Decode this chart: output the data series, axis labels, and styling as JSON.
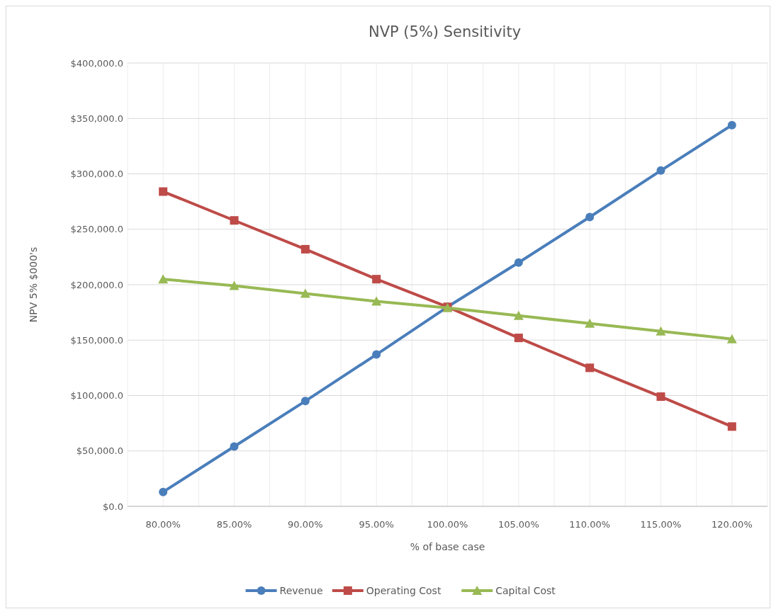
{
  "chart_data": {
    "type": "line",
    "title": "NVP (5%) Sensitivity",
    "xlabel": "% of base case",
    "ylabel": "NPV 5% $000's",
    "categories": [
      "80.00%",
      "85.00%",
      "90.00%",
      "95.00%",
      "100.00%",
      "105.00%",
      "110.00%",
      "115.00%",
      "120.00%"
    ],
    "series": [
      {
        "name": "Revenue",
        "color": "#4a7ebb",
        "marker": "circle",
        "values": [
          13000,
          54000,
          95000,
          137000,
          180000,
          220000,
          261000,
          303000,
          344000
        ]
      },
      {
        "name": "Operating Cost",
        "color": "#be4b48",
        "marker": "square",
        "values": [
          284000,
          258000,
          232000,
          205000,
          180000,
          152000,
          125000,
          99000,
          72000
        ]
      },
      {
        "name": "Capital Cost",
        "color": "#98b954",
        "marker": "triangle",
        "values": [
          205000,
          199000,
          192000,
          185000,
          179000,
          172000,
          165000,
          158000,
          151000
        ]
      }
    ],
    "ylim": [
      0,
      400000
    ],
    "yticks": [
      {
        "value": 0,
        "label": "$0.0"
      },
      {
        "value": 50000,
        "label": "$50,000.0"
      },
      {
        "value": 100000,
        "label": "$100,000.0"
      },
      {
        "value": 150000,
        "label": "$150,000.0"
      },
      {
        "value": 200000,
        "label": "$200,000.0"
      },
      {
        "value": 250000,
        "label": "$250,000.0"
      },
      {
        "value": 300000,
        "label": "$300,000.0"
      },
      {
        "value": 350000,
        "label": "$350,000.0"
      },
      {
        "value": 400000,
        "label": "$400,000.0"
      }
    ],
    "grid": true,
    "legend": "bottom",
    "line_style": "solid"
  }
}
